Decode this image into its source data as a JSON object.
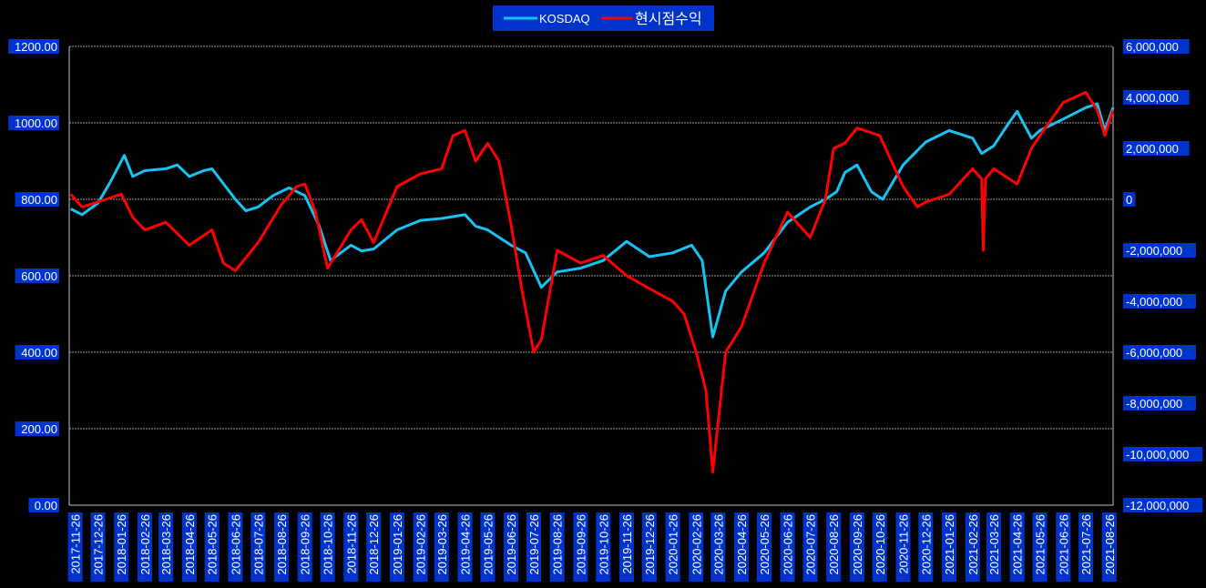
{
  "chart_data": {
    "type": "line",
    "title": "",
    "xlabel": "",
    "ylabel": "",
    "grid": true,
    "legend_placement": "top-center",
    "colors": {
      "background": "#000000",
      "label_box": "#0033cc",
      "grid": "#d0d0d0",
      "KOSDAQ": "#16c3f2",
      "hyunsi": "#ff0000"
    },
    "legend": [
      "KOSDAQ",
      "현시점수익"
    ],
    "x_tick_labels": [
      "2017-11-26",
      "2017-12-26",
      "2018-01-26",
      "2018-02-26",
      "2018-03-26",
      "2018-04-26",
      "2018-05-26",
      "2018-06-26",
      "2018-07-26",
      "2018-08-26",
      "2018-09-26",
      "2018-10-26",
      "2018-11-26",
      "2018-12-26",
      "2019-01-26",
      "2019-02-26",
      "2019-03-26",
      "2019-04-26",
      "2019-05-26",
      "2019-06-26",
      "2019-07-26",
      "2019-08-26",
      "2019-09-26",
      "2019-10-26",
      "2019-11-26",
      "2019-12-26",
      "2020-01-26",
      "2020-02-26",
      "2020-03-26",
      "2020-04-26",
      "2020-05-26",
      "2020-06-26",
      "2020-07-26",
      "2020-08-26",
      "2020-09-26",
      "2020-10-26",
      "2020-11-26",
      "2020-12-26",
      "2021-01-26",
      "2021-02-26",
      "2021-03-26",
      "2021-04-26",
      "2021-05-26",
      "2021-06-26",
      "2021-07-26",
      "2021-08-26"
    ],
    "y_left": {
      "ylim": [
        0,
        1200
      ],
      "ticks": [
        "0.00",
        "200.00",
        "400.00",
        "600.00",
        "800.00",
        "1000.00",
        "1200.00"
      ]
    },
    "y_right": {
      "ylim": [
        -12000000,
        6000000
      ],
      "ticks": [
        "-12,000,000",
        "-10,000,000",
        "-8,000,000",
        "-6,000,000",
        "-4,000,000",
        "-2,000,000",
        "0",
        "2,000,000",
        "4,000,000",
        "6,000,000"
      ]
    },
    "series": [
      {
        "name": "KOSDAQ",
        "axis": "left",
        "x": [
          "2017-11-20",
          "2017-12-05",
          "2017-12-26",
          "2018-01-10",
          "2018-01-30",
          "2018-02-10",
          "2018-02-26",
          "2018-03-26",
          "2018-04-10",
          "2018-04-26",
          "2018-05-15",
          "2018-05-26",
          "2018-06-26",
          "2018-07-10",
          "2018-07-26",
          "2018-08-15",
          "2018-09-05",
          "2018-09-26",
          "2018-10-15",
          "2018-10-30",
          "2018-11-26",
          "2018-12-10",
          "2018-12-26",
          "2019-01-26",
          "2019-02-26",
          "2019-03-26",
          "2019-04-26",
          "2019-05-10",
          "2019-05-26",
          "2019-06-26",
          "2019-07-15",
          "2019-08-05",
          "2019-08-26",
          "2019-09-26",
          "2019-10-26",
          "2019-11-26",
          "2019-12-26",
          "2020-01-26",
          "2020-02-20",
          "2020-03-05",
          "2020-03-19",
          "2020-04-05",
          "2020-04-26",
          "2020-05-26",
          "2020-06-26",
          "2020-07-26",
          "2020-08-15",
          "2020-08-30",
          "2020-09-10",
          "2020-09-26",
          "2020-10-15",
          "2020-10-30",
          "2020-11-26",
          "2020-12-26",
          "2021-01-26",
          "2021-02-26",
          "2021-03-10",
          "2021-03-26",
          "2021-04-15",
          "2021-04-26",
          "2021-05-15",
          "2021-05-26",
          "2021-06-26",
          "2021-07-26",
          "2021-08-10",
          "2021-08-20",
          "2021-08-31"
        ],
        "values": [
          775,
          760,
          790,
          840,
          915,
          860,
          875,
          880,
          890,
          860,
          875,
          880,
          800,
          770,
          780,
          810,
          830,
          810,
          730,
          640,
          680,
          665,
          670,
          720,
          745,
          750,
          760,
          730,
          720,
          680,
          660,
          570,
          610,
          620,
          640,
          690,
          650,
          660,
          680,
          640,
          440,
          560,
          610,
          660,
          740,
          780,
          800,
          820,
          870,
          890,
          820,
          800,
          890,
          950,
          980,
          960,
          920,
          940,
          1000,
          1030,
          960,
          980,
          1010,
          1040,
          1050,
          980,
          1040
        ]
      },
      {
        "name": "현시점수익",
        "axis": "right",
        "x": [
          "2017-11-20",
          "2017-12-05",
          "2017-12-26",
          "2018-01-26",
          "2018-02-10",
          "2018-02-26",
          "2018-03-26",
          "2018-04-26",
          "2018-05-26",
          "2018-06-10",
          "2018-06-26",
          "2018-07-26",
          "2018-08-26",
          "2018-09-15",
          "2018-09-26",
          "2018-10-10",
          "2018-10-26",
          "2018-11-26",
          "2018-12-10",
          "2018-12-26",
          "2019-01-26",
          "2019-02-26",
          "2019-03-26",
          "2019-04-10",
          "2019-04-26",
          "2019-05-10",
          "2019-05-26",
          "2019-06-10",
          "2019-06-26",
          "2019-07-10",
          "2019-07-26",
          "2019-08-05",
          "2019-08-26",
          "2019-09-26",
          "2019-10-26",
          "2019-11-26",
          "2019-12-26",
          "2020-01-26",
          "2020-02-10",
          "2020-02-26",
          "2020-03-10",
          "2020-03-19",
          "2020-04-05",
          "2020-04-26",
          "2020-05-26",
          "2020-06-26",
          "2020-07-26",
          "2020-08-15",
          "2020-08-26",
          "2020-09-10",
          "2020-09-26",
          "2020-10-26",
          "2020-11-26",
          "2020-12-15",
          "2020-12-26",
          "2021-01-26",
          "2021-02-26",
          "2021-03-10",
          "2021-03-12",
          "2021-03-15",
          "2021-03-26",
          "2021-04-26",
          "2021-05-15",
          "2021-05-26",
          "2021-06-26",
          "2021-07-26",
          "2021-08-10",
          "2021-08-20",
          "2021-08-31"
        ],
        "values": [
          200000,
          -300000,
          -100000,
          200000,
          -700000,
          -1200000,
          -900000,
          -1800000,
          -1200000,
          -2500000,
          -2800000,
          -1700000,
          -200000,
          500000,
          600000,
          -500000,
          -2700000,
          -1200000,
          -800000,
          -1700000,
          500000,
          1000000,
          1200000,
          2500000,
          2700000,
          1500000,
          2200000,
          1500000,
          -1000000,
          -3500000,
          -6000000,
          -5500000,
          -2000000,
          -2500000,
          -2200000,
          -3000000,
          -3500000,
          -4000000,
          -4500000,
          -6000000,
          -7500000,
          -10700000,
          -6000000,
          -5000000,
          -2500000,
          -500000,
          -1500000,
          0,
          2000000,
          2200000,
          2800000,
          2500000,
          500000,
          -300000,
          -100000,
          200000,
          1200000,
          800000,
          -2000000,
          800000,
          1200000,
          600000,
          2000000,
          2500000,
          3800000,
          4200000,
          3500000,
          2500000,
          3500000
        ]
      }
    ]
  }
}
